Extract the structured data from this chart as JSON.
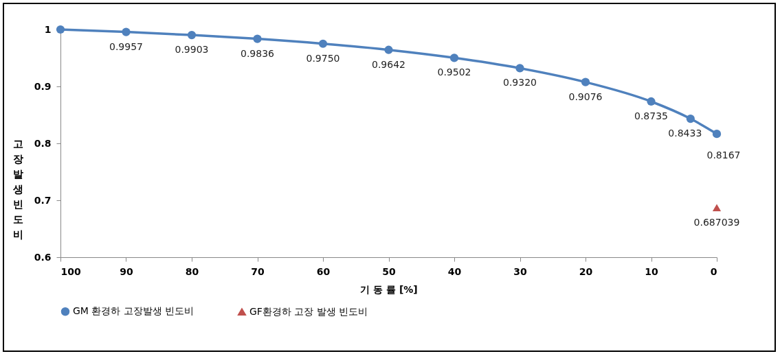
{
  "chart_data": {
    "type": "line",
    "xlabel": "기 동 률 [%]",
    "ylabel": "고장 발생 빈도비",
    "xlim": [
      100,
      0
    ],
    "xticks": [
      100,
      90,
      80,
      70,
      60,
      50,
      40,
      30,
      20,
      10,
      0
    ],
    "ylim": [
      0.6,
      1
    ],
    "yticks": [
      0.6,
      0.7,
      0.8,
      0.9,
      1
    ],
    "grid": false,
    "legend": "bottom",
    "line_style": "solid",
    "series": [
      {
        "name": "GM 환경하 고장발생 빈도비",
        "color": "#4f81bd",
        "marker": "circle",
        "x": [
          100,
          90,
          80,
          70,
          60,
          50,
          40,
          30,
          20,
          10,
          4,
          0
        ],
        "values": [
          1,
          0.9957,
          0.9903,
          0.9836,
          0.975,
          0.9642,
          0.9502,
          0.932,
          0.9076,
          0.8735,
          0.8433,
          0.8167
        ],
        "value_labels": [
          null,
          "0.9957",
          "0.9903",
          "0.9836",
          "0.9750",
          "0.9642",
          "0.9502",
          "0.9320",
          "0.9076",
          "0.8735",
          "0.8433",
          "0.8167"
        ]
      },
      {
        "name": "GF환경하 고장 발생 빈도비",
        "color": "#c0504d",
        "marker": "triangle",
        "x": [
          0
        ],
        "values": [
          0.687039
        ],
        "value_labels": [
          "0.687039"
        ]
      }
    ]
  }
}
